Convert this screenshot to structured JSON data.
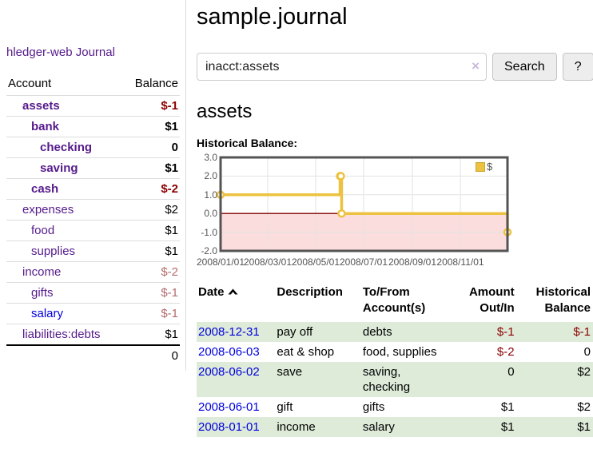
{
  "app": {
    "brand": "hledger-web",
    "nav_journal": "Journal"
  },
  "sidebar": {
    "accounts_header": {
      "account": "Account",
      "balance": "Balance"
    },
    "accounts": [
      {
        "name": "assets",
        "indent": 1,
        "bold": true,
        "balance": "$-1",
        "balance_style": "neg-strong"
      },
      {
        "name": "bank",
        "indent": 2,
        "bold": true,
        "balance": "$1",
        "balance_style": "pos-strong"
      },
      {
        "name": "checking",
        "indent": 3,
        "bold": true,
        "balance": "0",
        "balance_style": "pos-strong"
      },
      {
        "name": "saving",
        "indent": 3,
        "bold": true,
        "balance": "$1",
        "balance_style": "pos-strong"
      },
      {
        "name": "cash",
        "indent": 2,
        "bold": true,
        "balance": "$-2",
        "balance_style": "neg-strong"
      },
      {
        "name": "expenses",
        "indent": 1,
        "bold": false,
        "balance": "$2",
        "balance_style": "pos"
      },
      {
        "name": "food",
        "indent": 2,
        "bold": false,
        "balance": "$1",
        "balance_style": "pos"
      },
      {
        "name": "supplies",
        "indent": 2,
        "bold": false,
        "balance": "$1",
        "balance_style": "pos"
      },
      {
        "name": "income",
        "indent": 1,
        "bold": false,
        "balance": "$-2",
        "balance_style": "neg-faded"
      },
      {
        "name": "gifts",
        "indent": 2,
        "bold": false,
        "balance": "$-1",
        "balance_style": "neg-faded"
      },
      {
        "name": "salary",
        "indent": 2,
        "bold": false,
        "balance": "$-1",
        "balance_style": "neg-faded",
        "link_color": "blue"
      },
      {
        "name": "liabilities:debts",
        "indent": 1,
        "bold": false,
        "balance": "$1",
        "balance_style": "pos"
      }
    ],
    "total": "0"
  },
  "main": {
    "title": "sample.journal",
    "search": {
      "value": "inacct:assets",
      "button": "Search",
      "help_button": "?"
    },
    "account_heading": "assets",
    "chart_label": "Historical Balance:"
  },
  "icons": {
    "clear": "×"
  },
  "chart_data": {
    "type": "line",
    "step": true,
    "title": "Historical Balance",
    "series": [
      {
        "name": "$",
        "color": "#edc240",
        "points": [
          [
            "2008/01/01",
            1
          ],
          [
            "2008/06/01",
            2
          ],
          [
            "2008/06/02",
            2
          ],
          [
            "2008/06/03",
            0
          ],
          [
            "2008/12/31",
            -1
          ]
        ]
      }
    ],
    "x_ticks": [
      "2008/01/01",
      "2008/03/01",
      "2008/05/01",
      "2008/07/01",
      "2008/09/01",
      "2008/11/01"
    ],
    "y_ticks": [
      "3.0",
      "2.0",
      "1.0",
      "0.0",
      "-1.0",
      "-2.0"
    ],
    "ylim": [
      -2,
      3
    ],
    "xlim": [
      "2008/01/01",
      "2008/12/31"
    ],
    "legend": "$",
    "legend_position": "top-right",
    "grid": true,
    "negative_region_color": "#fbdddd",
    "zero_line_color": "#800000"
  },
  "table": {
    "headers": {
      "date": "Date",
      "description": "Description",
      "tofrom": "To/From Account(s)",
      "amount": "Amount Out/In",
      "balance": "Historical Balance"
    },
    "rows": [
      {
        "date": "2008-12-31",
        "description": "pay off",
        "accounts": "debts",
        "amount": "$-1",
        "balance": "$-1"
      },
      {
        "date": "2008-06-03",
        "description": "eat & shop",
        "accounts": "food, supplies",
        "amount": "$-2",
        "balance": "0"
      },
      {
        "date": "2008-06-02",
        "description": "save",
        "accounts": "saving, checking",
        "amount": "0",
        "balance": "$2"
      },
      {
        "date": "2008-06-01",
        "description": "gift",
        "accounts": "gifts",
        "amount": "$1",
        "balance": "$2"
      },
      {
        "date": "2008-01-01",
        "description": "income",
        "accounts": "salary",
        "amount": "$1",
        "balance": "$1"
      }
    ]
  },
  "colors": {
    "link_purple": "#551a8b",
    "link_blue": "#0000dd",
    "negative_red": "#8b0000",
    "negative_faded": "#b36b6b",
    "row_green": "#deebd9",
    "chart_gold": "#edc240",
    "chart_negative_bg": "#fbdddd",
    "chart_zero_line": "#800000"
  }
}
